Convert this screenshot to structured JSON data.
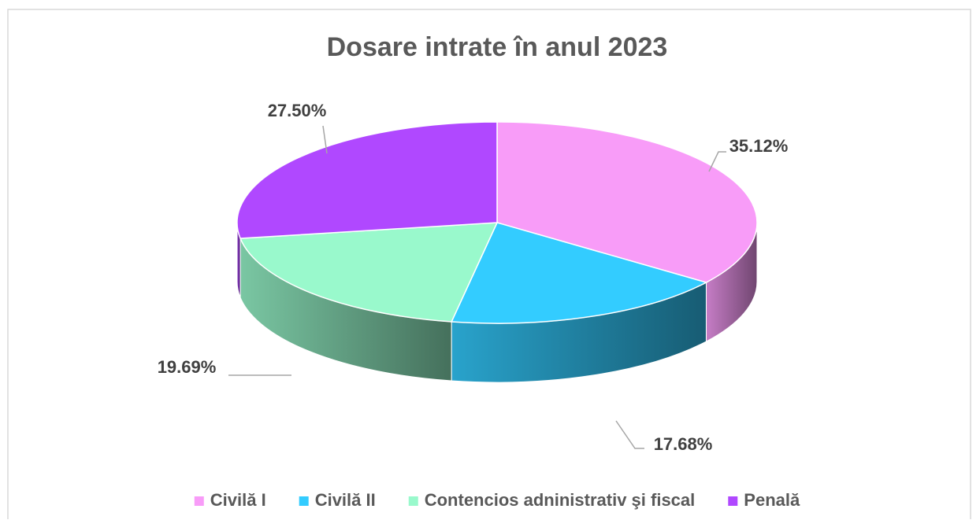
{
  "chart_data": {
    "type": "pie",
    "title": "Dosare intrate în anul 2023",
    "categories": [
      "Civilă I",
      "Civilă II",
      "Contencios adninistrativ şi fiscal",
      "Penală"
    ],
    "values": [
      35.12,
      17.68,
      19.69,
      27.5
    ],
    "value_labels": [
      "35.12%",
      "17.68%",
      "19.69%",
      "27.50%"
    ],
    "colors": [
      "#f89cf8",
      "#33ccff",
      "#99f9cc",
      "#b048ff"
    ],
    "legend": "bottom"
  }
}
